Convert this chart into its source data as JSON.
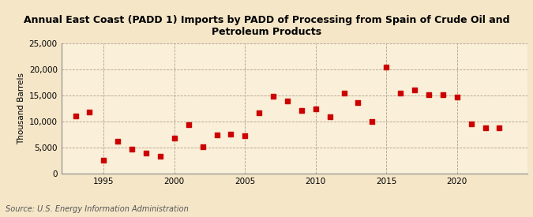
{
  "title": "Annual East Coast (PADD 1) Imports by PADD of Processing from Spain of Crude Oil and\nPetroleum Products",
  "ylabel": "Thousand Barrels",
  "source": "Source: U.S. Energy Information Administration",
  "background_color": "#f5e6c8",
  "plot_background_color": "#faefd8",
  "marker_color": "#cc0000",
  "ylim": [
    0,
    25000
  ],
  "yticks": [
    0,
    5000,
    10000,
    15000,
    20000,
    25000
  ],
  "years": [
    1993,
    1994,
    1995,
    1996,
    1997,
    1998,
    1999,
    2000,
    2001,
    2002,
    2003,
    2004,
    2005,
    2006,
    2007,
    2008,
    2009,
    2010,
    2011,
    2012,
    2013,
    2014,
    2015,
    2016,
    2017,
    2018,
    2019,
    2020,
    2021,
    2022,
    2023
  ],
  "values": [
    11000,
    11800,
    2600,
    6200,
    4700,
    4000,
    3400,
    6800,
    9400,
    5100,
    7500,
    7600,
    7200,
    11700,
    14800,
    13900,
    12100,
    12400,
    10900,
    15500,
    13600,
    10000,
    20500,
    15400,
    16000,
    15200,
    15100,
    14700,
    9500,
    8800,
    8800
  ],
  "xlim": [
    1992,
    2025
  ],
  "xticks": [
    1995,
    2000,
    2005,
    2010,
    2015,
    2020
  ],
  "title_fontsize": 9,
  "axis_fontsize": 7.5,
  "source_fontsize": 7
}
